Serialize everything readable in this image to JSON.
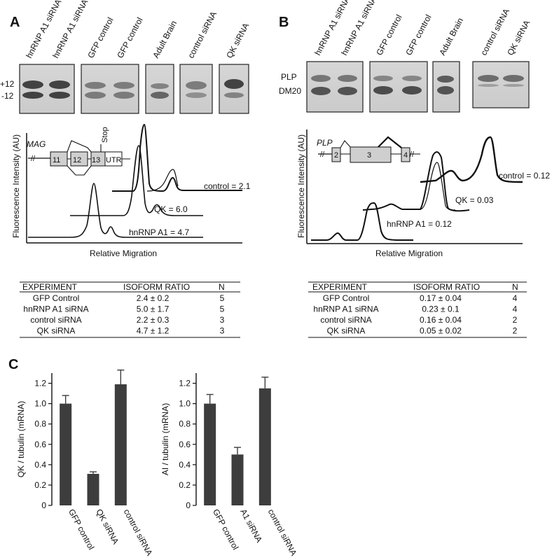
{
  "panel_a": {
    "letter": "A",
    "lanes": [
      "hnRNP A1 siRNA",
      "hnRNP A1 siRNA",
      "GFP control",
      "GFP control",
      "Adult Brain",
      "control siRNA",
      "QK siRNA"
    ],
    "band_labels": [
      "+12",
      "-12"
    ],
    "gene_label": "MAG",
    "exon_labels": [
      "11",
      "12",
      "13",
      "UTR"
    ],
    "stop_label": "Stop",
    "y_axis_label": "Fluorescence Intensity (AU)",
    "x_axis_label": "Relative Migration",
    "trace_labels": [
      "control = 2.1",
      "QK = 6.0",
      "hnRNP A1 = 4.7"
    ],
    "table": {
      "headers": [
        "EXPERIMENT",
        "ISOFORM RATIO",
        "N"
      ],
      "rows": [
        [
          "GFP Control",
          "2.4 ± 0.2",
          "5"
        ],
        [
          "hnRNP A1 siRNA",
          "5.0 ± 1.7",
          "5"
        ],
        [
          "control siRNA",
          "2.2 ± 0.3",
          "3"
        ],
        [
          "QK siRNA",
          "4.7 ± 1.2",
          "3"
        ]
      ]
    }
  },
  "panel_b": {
    "letter": "B",
    "lanes": [
      "hnRNP A1 siRNA",
      "hnRNP A1 siRNA",
      "GFP control",
      "GFP control",
      "Adult Brain",
      "control siRNA",
      "QK siRNA"
    ],
    "band_labels": [
      "PLP",
      "DM20"
    ],
    "gene_label": "PLP",
    "exon_labels": [
      "2",
      "3",
      "4"
    ],
    "y_axis_label": "Fluorescence Intensity (AU)",
    "x_axis_label": "Relative Migration",
    "trace_labels": [
      "control = 0.12",
      "QK = 0.03",
      "hnRNP A1 = 0.12"
    ],
    "table": {
      "headers": [
        "EXPERIMENT",
        "ISOFORM RATIO",
        "N"
      ],
      "rows": [
        [
          "GFP Control",
          "0.17 ± 0.04",
          "4"
        ],
        [
          "hnRNP A1 siRNA",
          "0.23 ± 0.1",
          "4"
        ],
        [
          "control siRNA",
          "0.16 ± 0.04",
          "2"
        ],
        [
          "QK siRNA",
          "0.05 ± 0.02",
          "2"
        ]
      ]
    }
  },
  "panel_c": {
    "letter": "C"
  },
  "chart_data": [
    {
      "type": "bar",
      "title": "",
      "ylabel": "QK / tubulin (mRNA)",
      "xlabel": "",
      "categories": [
        "GFP control",
        "QK siRNA",
        "control siRNA"
      ],
      "values": [
        1.0,
        0.31,
        1.19
      ],
      "errors": [
        0.08,
        0.02,
        0.14
      ],
      "ylim": [
        0,
        1.3
      ],
      "yticks": [
        "0",
        "0.2",
        "0.4",
        "0.6",
        "0.8",
        "1.0",
        "1.2"
      ],
      "bar_color": "#3d3d3d"
    },
    {
      "type": "bar",
      "title": "",
      "ylabel": "AI / tubulin (mRNA)",
      "xlabel": "",
      "categories": [
        "GFP control",
        "A1 siRNA",
        "control siRNA"
      ],
      "values": [
        1.0,
        0.5,
        1.15
      ],
      "errors": [
        0.09,
        0.07,
        0.11
      ],
      "ylim": [
        0,
        1.3
      ],
      "yticks": [
        "0",
        "0.2",
        "0.4",
        "0.6",
        "0.8",
        "1.0",
        "1.2"
      ],
      "bar_color": "#3d3d3d"
    }
  ]
}
